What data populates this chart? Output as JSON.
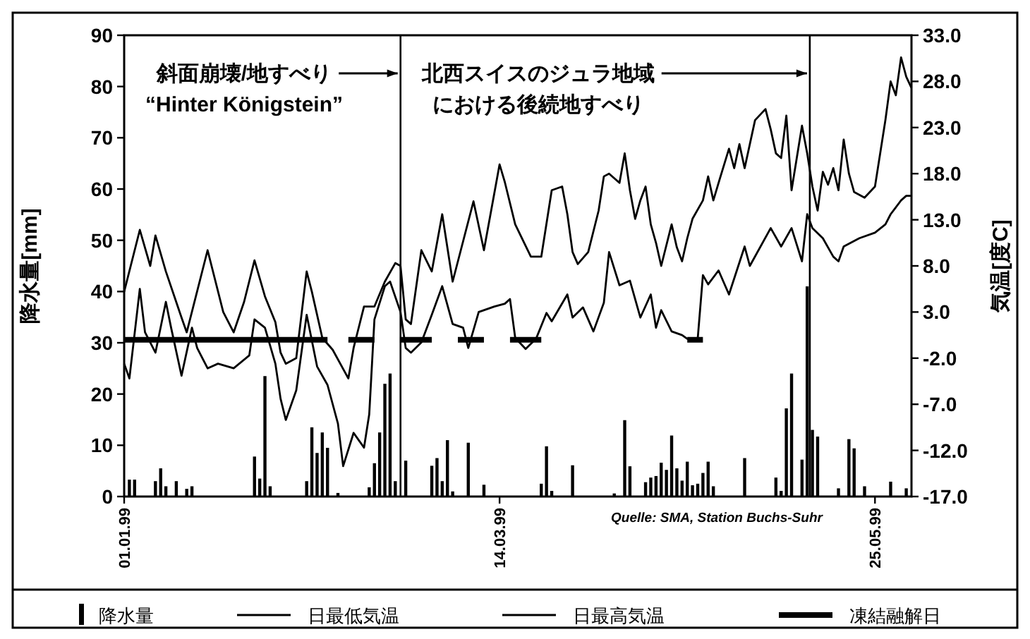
{
  "chart_data": {
    "type": "bar",
    "ylabel": "降水量[mm]",
    "y2label": "気温[度C]",
    "legend": "bottom",
    "grid": false,
    "xlim": [
      "1999-01-01",
      "1999-06-01"
    ],
    "xticks": [
      {
        "value": "1999-01-01",
        "label": "01.01.99"
      },
      {
        "value": "1999-03-14",
        "label": "14.03.99"
      },
      {
        "value": "1999-05-25",
        "label": "25.05.99"
      }
    ],
    "ylim": [
      0,
      90
    ],
    "yticks": [
      0,
      10,
      20,
      30,
      40,
      50,
      60,
      70,
      80,
      90
    ],
    "y2lim": [
      -17,
      33
    ],
    "y2ticks": [
      {
        "value": 33,
        "label": "33.0"
      },
      {
        "value": 28,
        "label": "28.0"
      },
      {
        "value": 23,
        "label": "23.0"
      },
      {
        "value": 18,
        "label": "18.0"
      },
      {
        "value": 13,
        "label": "13.0"
      },
      {
        "value": 8,
        "label": "8.0"
      },
      {
        "value": 3,
        "label": "3.0"
      },
      {
        "value": -2,
        "label": "-2.0"
      },
      {
        "value": -7,
        "label": "-7.0"
      },
      {
        "value": -12,
        "label": "-12.0"
      },
      {
        "value": -17,
        "label": "-17.0"
      }
    ],
    "series": [
      {
        "name": "降水量",
        "color": "#000000",
        "x": [
          "1999-01-02",
          "1999-01-03",
          "1999-01-07",
          "1999-01-08",
          "1999-01-09",
          "1999-01-11",
          "1999-01-13",
          "1999-01-14",
          "1999-01-26",
          "1999-01-27",
          "1999-01-28",
          "1999-01-29",
          "1999-02-05",
          "1999-02-06",
          "1999-02-07",
          "1999-02-08",
          "1999-02-09",
          "1999-02-11",
          "1999-02-17",
          "1999-02-18",
          "1999-02-19",
          "1999-02-20",
          "1999-02-21",
          "1999-02-22",
          "1999-02-24",
          "1999-03-01",
          "1999-03-02",
          "1999-03-03",
          "1999-03-04",
          "1999-03-05",
          "1999-03-08",
          "1999-03-11",
          "1999-03-22",
          "1999-03-23",
          "1999-03-24",
          "1999-03-28",
          "1999-04-05",
          "1999-04-07",
          "1999-04-08",
          "1999-04-11",
          "1999-04-12",
          "1999-04-13",
          "1999-04-14",
          "1999-04-15",
          "1999-04-16",
          "1999-04-17",
          "1999-04-18",
          "1999-04-19",
          "1999-04-20",
          "1999-04-21",
          "1999-04-22",
          "1999-04-23",
          "1999-04-24",
          "1999-04-30",
          "1999-05-06",
          "1999-05-07",
          "1999-05-08",
          "1999-05-09",
          "1999-05-11",
          "1999-05-12",
          "1999-05-13",
          "1999-05-14",
          "1999-05-18",
          "1999-05-20",
          "1999-05-21",
          "1999-05-23",
          "1999-05-28",
          "1999-05-31"
        ],
        "values": [
          3.3,
          3.3,
          3,
          5.5,
          2,
          3,
          1.5,
          2,
          7.8,
          3.5,
          23.5,
          2,
          3,
          13.5,
          8.5,
          12.5,
          9.5,
          0.7,
          1.8,
          6.5,
          12.5,
          22,
          24,
          3,
          7,
          6,
          7.5,
          3,
          11,
          1,
          10.5,
          2.3,
          2.5,
          9.8,
          1.1,
          6.1,
          0.6,
          14.9,
          5.9,
          2.8,
          3.7,
          4,
          6.6,
          5.2,
          11.9,
          5.5,
          3.1,
          6.8,
          2.2,
          2.5,
          4.6,
          6.8,
          2,
          7.5,
          3.7,
          1.1,
          17.2,
          24,
          7.2,
          41,
          13,
          11.7,
          1.6,
          11.2,
          9.4,
          2,
          2.9,
          1.6
        ]
      },
      {
        "name": "日最低気温",
        "type": "line",
        "axis": "y2",
        "color": "#000000",
        "x": [
          "1999-01-01",
          "1999-01-02",
          "1999-01-04",
          "1999-01-05",
          "1999-01-07",
          "1999-01-09",
          "1999-01-10",
          "1999-01-12",
          "1999-01-14",
          "1999-01-15",
          "1999-01-17",
          "1999-01-19",
          "1999-01-22",
          "1999-01-25",
          "1999-01-26",
          "1999-01-28",
          "1999-01-30",
          "1999-01-31",
          "1999-02-01",
          "1999-02-03",
          "1999-02-05",
          "1999-02-07",
          "1999-02-09",
          "1999-02-11",
          "1999-02-12",
          "1999-02-14",
          "1999-02-16",
          "1999-02-17",
          "1999-02-18",
          "1999-02-20",
          "1999-02-21",
          "1999-02-23",
          "1999-02-24",
          "1999-02-25",
          "1999-02-27",
          "1999-03-01",
          "1999-03-03",
          "1999-03-05",
          "1999-03-07",
          "1999-03-08",
          "1999-03-10",
          "1999-03-13",
          "1999-03-15",
          "1999-03-16",
          "1999-03-17",
          "1999-03-19",
          "1999-03-21",
          "1999-03-23",
          "1999-03-24",
          "1999-03-27",
          "1999-03-28",
          "1999-03-30",
          "1999-04-01",
          "1999-04-03",
          "1999-04-04",
          "1999-04-06",
          "1999-04-08",
          "1999-04-10",
          "1999-04-12",
          "1999-04-13",
          "1999-04-14",
          "1999-04-16",
          "1999-04-18",
          "1999-04-19",
          "1999-04-21",
          "1999-04-22",
          "1999-04-23",
          "1999-04-25",
          "1999-04-27",
          "1999-04-30",
          "1999-05-01",
          "1999-05-05",
          "1999-05-07",
          "1999-05-09",
          "1999-05-11",
          "1999-05-12",
          "1999-05-13",
          "1999-05-15",
          "1999-05-17",
          "1999-05-18",
          "1999-05-19",
          "1999-05-22",
          "1999-05-25",
          "1999-05-27",
          "1999-05-28",
          "1999-05-30",
          "1999-05-31",
          "1999-06-01"
        ],
        "values": [
          -2.6,
          -4.2,
          5.5,
          0.8,
          -1.4,
          4.1,
          1.3,
          -3.9,
          1.3,
          -0.9,
          -3.1,
          -2.6,
          -3.1,
          -1.7,
          2.2,
          1.3,
          -2.6,
          -6.4,
          -8.7,
          -5.5,
          2.7,
          -2.9,
          -4.9,
          -9.1,
          -13.7,
          -10.1,
          -11.7,
          -8.1,
          2.2,
          5.8,
          6.3,
          3,
          -0.9,
          -1.4,
          -0.3,
          2.7,
          5.8,
          1.7,
          1.3,
          -0.9,
          3,
          3.6,
          3.9,
          4.4,
          0.2,
          -1,
          0.1,
          2.9,
          2,
          4.9,
          2.4,
          3.5,
          0.9,
          4,
          9.5,
          5.9,
          6.4,
          2.4,
          4.9,
          1.3,
          3.2,
          0.9,
          0.5,
          0.1,
          0.1,
          7,
          6,
          7.5,
          4.9,
          10.1,
          8,
          12.1,
          10.1,
          12.1,
          8.5,
          13.6,
          12.1,
          11,
          9,
          8.5,
          10.1,
          11,
          11.6,
          12.5,
          13.6,
          15.1,
          15.6,
          15.6
        ]
      },
      {
        "name": "日最高気温",
        "type": "line",
        "axis": "y2",
        "color": "#000000",
        "x": [
          "1999-01-01",
          "1999-01-04",
          "1999-01-06",
          "1999-01-07",
          "1999-01-09",
          "1999-01-12",
          "1999-01-13",
          "1999-01-17",
          "1999-01-20",
          "1999-01-22",
          "1999-01-24",
          "1999-01-26",
          "1999-01-28",
          "1999-01-30",
          "1999-01-31",
          "1999-02-01",
          "1999-02-03",
          "1999-02-05",
          "1999-02-06",
          "1999-02-08",
          "1999-02-10",
          "1999-02-13",
          "1999-02-14",
          "1999-02-16",
          "1999-02-18",
          "1999-02-20",
          "1999-02-22",
          "1999-02-23",
          "1999-02-24",
          "1999-02-25",
          "1999-02-27",
          "1999-03-01",
          "1999-03-03",
          "1999-03-05",
          "1999-03-09",
          "1999-03-11",
          "1999-03-14",
          "1999-03-15",
          "1999-03-17",
          "1999-03-20",
          "1999-03-22",
          "1999-03-24",
          "1999-03-26",
          "1999-03-27",
          "1999-03-28",
          "1999-03-29",
          "1999-03-31",
          "1999-04-02",
          "1999-04-03",
          "1999-04-04",
          "1999-04-06",
          "1999-04-07",
          "1999-04-08",
          "1999-04-09",
          "1999-04-10",
          "1999-04-11",
          "1999-04-12",
          "1999-04-13",
          "1999-04-14",
          "1999-04-16",
          "1999-04-17",
          "1999-04-18",
          "1999-04-19",
          "1999-04-20",
          "1999-04-22",
          "1999-04-23",
          "1999-04-24",
          "1999-04-25",
          "1999-04-27",
          "1999-04-28",
          "1999-04-29",
          "1999-04-30",
          "1999-05-01",
          "1999-05-02",
          "1999-05-04",
          "1999-05-05",
          "1999-05-06",
          "1999-05-07",
          "1999-05-08",
          "1999-05-09",
          "1999-05-10",
          "1999-05-11",
          "1999-05-12",
          "1999-05-13",
          "1999-05-14",
          "1999-05-15",
          "1999-05-16",
          "1999-05-17",
          "1999-05-18",
          "1999-05-19",
          "1999-05-20",
          "1999-05-21",
          "1999-05-23",
          "1999-05-25",
          "1999-05-27",
          "1999-05-28",
          "1999-05-29",
          "1999-05-30",
          "1999-05-31",
          "1999-06-01"
        ],
        "values": [
          5.2,
          11.9,
          8,
          11.3,
          7.4,
          2.4,
          0.8,
          9.7,
          3,
          0.8,
          4.1,
          8.6,
          4.7,
          1.9,
          -1.4,
          -2.6,
          -2,
          7.4,
          5.2,
          0.2,
          -1.1,
          -4.2,
          -0.9,
          3.6,
          3.6,
          6.3,
          8.3,
          8,
          2.2,
          1.7,
          9.7,
          7.4,
          13.6,
          6.3,
          15,
          9.7,
          19,
          17.1,
          12.5,
          9,
          9,
          16.2,
          16.6,
          13.6,
          9.5,
          8.2,
          9.5,
          14,
          17.7,
          18,
          17,
          20.2,
          16.2,
          13.1,
          15.1,
          16.6,
          12.5,
          10.5,
          8,
          12.5,
          10,
          8.5,
          11,
          13.1,
          15.1,
          17.7,
          15.1,
          17,
          20.7,
          18.6,
          21.2,
          18.6,
          21.2,
          23.8,
          25,
          22.8,
          20.2,
          19.7,
          24.3,
          16.2,
          19.7,
          23.2,
          20.2,
          16.6,
          14,
          18.2,
          16.8,
          18.6,
          16.2,
          21.7,
          18,
          16,
          15.4,
          16.6,
          23.8,
          28,
          26.5,
          30.6,
          28.5,
          27.3
        ]
      },
      {
        "name": "凍結融解日",
        "type": "line",
        "axis": "y2",
        "color": "#000000",
        "x": [
          "1999-01-01",
          "1999-02-09",
          "1999-02-10",
          "1999-02-13",
          "1999-02-18",
          "1999-02-19",
          "1999-02-23",
          "1999-03-01",
          "1999-03-02",
          "1999-03-06",
          "1999-03-11",
          "1999-03-12",
          "1999-03-16",
          "1999-03-22",
          "1999-03-23",
          "1999-04-19",
          "1999-04-22"
        ],
        "values": [
          0,
          0,
          null,
          0,
          0,
          null,
          0,
          0,
          null,
          0,
          0,
          null,
          0,
          0,
          null,
          0,
          0
        ]
      }
    ],
    "ref_lines": [
      {
        "axis": "x",
        "value": "1999-02-23",
        "label": "斜面崩壊/地すべり\n“Hinter Königstein”"
      },
      {
        "axis": "x",
        "value": "1999-05-12T12:00",
        "label": "北西スイスのジュラ地域における後続地すべり"
      }
    ],
    "annotations": [
      "Quelle: SMA, Station Buchs-Suhr"
    ]
  }
}
